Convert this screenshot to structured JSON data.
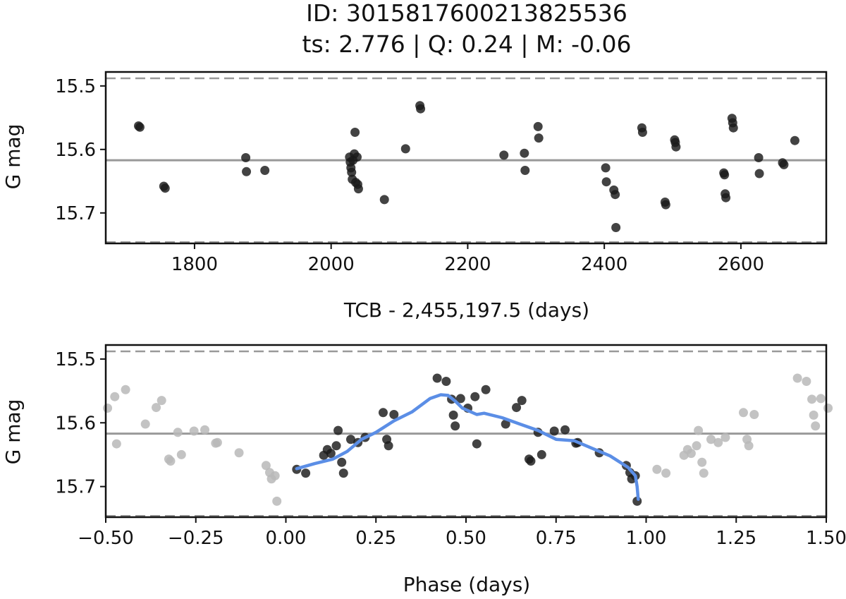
{
  "title": {
    "line1": "ID: 3015817600213825536",
    "line2": "ts: 2.776 | Q: 0.24 | M: -0.06"
  },
  "colors": {
    "points": "#1a1a1a",
    "ghost_points": "#b8b8b8",
    "model_line": "#5b8ee6",
    "ref_line": "#999999"
  },
  "chart_data": [
    {
      "type": "scatter",
      "name": "time-series",
      "xlabel": "TCB - 2,455,197.5 (days)",
      "ylabel": "G mag",
      "xlim": [
        1670,
        2725
      ],
      "ylim": [
        15.748,
        15.478
      ],
      "y_inverted": true,
      "xticks": [
        1800,
        2000,
        2200,
        2400,
        2600
      ],
      "xtick_labels": [
        "1800",
        "2000",
        "2200",
        "2400",
        "2600"
      ],
      "yticks": [
        15.5,
        15.6,
        15.7
      ],
      "ytick_labels": [
        "15.5",
        "15.6",
        "15.7"
      ],
      "reference_lines": {
        "mean": 15.617,
        "lower_dashed": 15.488,
        "upper_dashed": 15.746
      },
      "points": [
        [
          1718,
          15.563
        ],
        [
          1720,
          15.565
        ],
        [
          1755,
          15.658
        ],
        [
          1757,
          15.661
        ],
        [
          1875,
          15.613
        ],
        [
          1876,
          15.635
        ],
        [
          1903,
          15.633
        ],
        [
          2027,
          15.612
        ],
        [
          2028,
          15.62
        ],
        [
          2029,
          15.629
        ],
        [
          2030,
          15.636
        ],
        [
          2031,
          15.647
        ],
        [
          2032,
          15.617
        ],
        [
          2034,
          15.607
        ],
        [
          2035,
          15.573
        ],
        [
          2036,
          15.652
        ],
        [
          2038,
          15.612
        ],
        [
          2039,
          15.655
        ],
        [
          2040,
          15.662
        ],
        [
          2078,
          15.679
        ],
        [
          2109,
          15.599
        ],
        [
          2130,
          15.531
        ],
        [
          2131,
          15.536
        ],
        [
          2253,
          15.609
        ],
        [
          2283,
          15.606
        ],
        [
          2284,
          15.633
        ],
        [
          2303,
          15.564
        ],
        [
          2304,
          15.582
        ],
        [
          2402,
          15.629
        ],
        [
          2403,
          15.651
        ],
        [
          2414,
          15.664
        ],
        [
          2416,
          15.671
        ],
        [
          2417,
          15.723
        ],
        [
          2455,
          15.566
        ],
        [
          2456,
          15.573
        ],
        [
          2489,
          15.683
        ],
        [
          2490,
          15.687
        ],
        [
          2503,
          15.585
        ],
        [
          2504,
          15.589
        ],
        [
          2505,
          15.596
        ],
        [
          2575,
          15.637
        ],
        [
          2576,
          15.64
        ],
        [
          2577,
          15.67
        ],
        [
          2578,
          15.676
        ],
        [
          2587,
          15.551
        ],
        [
          2588,
          15.558
        ],
        [
          2589,
          15.566
        ],
        [
          2626,
          15.613
        ],
        [
          2627,
          15.638
        ],
        [
          2661,
          15.621
        ],
        [
          2663,
          15.624
        ],
        [
          2679,
          15.586
        ]
      ]
    },
    {
      "type": "scatter",
      "name": "phase-folded",
      "xlabel": "Phase (days)",
      "ylabel": "G mag",
      "xlim": [
        -0.5,
        1.5
      ],
      "ylim": [
        15.748,
        15.478
      ],
      "y_inverted": true,
      "xticks": [
        -0.5,
        -0.25,
        0.0,
        0.25,
        0.5,
        0.75,
        1.0,
        1.25,
        1.5
      ],
      "xtick_labels": [
        "−0.50",
        "−0.25",
        "0.00",
        "0.25",
        "0.50",
        "0.75",
        "1.00",
        "1.25",
        "1.50"
      ],
      "yticks": [
        15.5,
        15.6,
        15.7
      ],
      "ytick_labels": [
        "15.5",
        "15.6",
        "15.7"
      ],
      "reference_lines": {
        "mean": 15.617,
        "lower_dashed": 15.488,
        "upper_dashed": 15.746
      },
      "points": [
        [
          0.03,
          15.673
        ],
        [
          0.055,
          15.679
        ],
        [
          0.105,
          15.651
        ],
        [
          0.115,
          15.642
        ],
        [
          0.125,
          15.648
        ],
        [
          0.14,
          15.636
        ],
        [
          0.145,
          15.612
        ],
        [
          0.155,
          15.662
        ],
        [
          0.16,
          15.679
        ],
        [
          0.18,
          15.626
        ],
        [
          0.2,
          15.631
        ],
        [
          0.22,
          15.623
        ],
        [
          0.27,
          15.584
        ],
        [
          0.28,
          15.626
        ],
        [
          0.285,
          15.636
        ],
        [
          0.3,
          15.587
        ],
        [
          0.42,
          15.53
        ],
        [
          0.445,
          15.535
        ],
        [
          0.46,
          15.563
        ],
        [
          0.465,
          15.588
        ],
        [
          0.47,
          15.605
        ],
        [
          0.485,
          15.562
        ],
        [
          0.505,
          15.577
        ],
        [
          0.525,
          15.559
        ],
        [
          0.53,
          15.633
        ],
        [
          0.555,
          15.548
        ],
        [
          0.61,
          15.602
        ],
        [
          0.64,
          15.576
        ],
        [
          0.655,
          15.565
        ],
        [
          0.675,
          15.657
        ],
        [
          0.68,
          15.66
        ],
        [
          0.7,
          15.615
        ],
        [
          0.71,
          15.65
        ],
        [
          0.745,
          15.613
        ],
        [
          0.775,
          15.611
        ],
        [
          0.805,
          15.632
        ],
        [
          0.81,
          15.631
        ],
        [
          0.87,
          15.647
        ],
        [
          0.945,
          15.667
        ],
        [
          0.955,
          15.678
        ],
        [
          0.96,
          15.688
        ],
        [
          0.97,
          15.683
        ],
        [
          0.975,
          15.723
        ]
      ],
      "model_curve": [
        [
          0.03,
          15.672
        ],
        [
          0.08,
          15.664
        ],
        [
          0.13,
          15.657
        ],
        [
          0.17,
          15.645
        ],
        [
          0.21,
          15.626
        ],
        [
          0.25,
          15.615
        ],
        [
          0.3,
          15.597
        ],
        [
          0.35,
          15.583
        ],
        [
          0.4,
          15.562
        ],
        [
          0.43,
          15.556
        ],
        [
          0.45,
          15.557
        ],
        [
          0.47,
          15.566
        ],
        [
          0.49,
          15.577
        ],
        [
          0.51,
          15.582
        ],
        [
          0.53,
          15.587
        ],
        [
          0.55,
          15.585
        ],
        [
          0.6,
          15.592
        ],
        [
          0.65,
          15.602
        ],
        [
          0.7,
          15.612
        ],
        [
          0.75,
          15.626
        ],
        [
          0.8,
          15.628
        ],
        [
          0.85,
          15.64
        ],
        [
          0.9,
          15.652
        ],
        [
          0.95,
          15.67
        ],
        [
          0.97,
          15.683
        ],
        [
          0.975,
          15.7
        ],
        [
          0.978,
          15.72
        ]
      ]
    }
  ]
}
